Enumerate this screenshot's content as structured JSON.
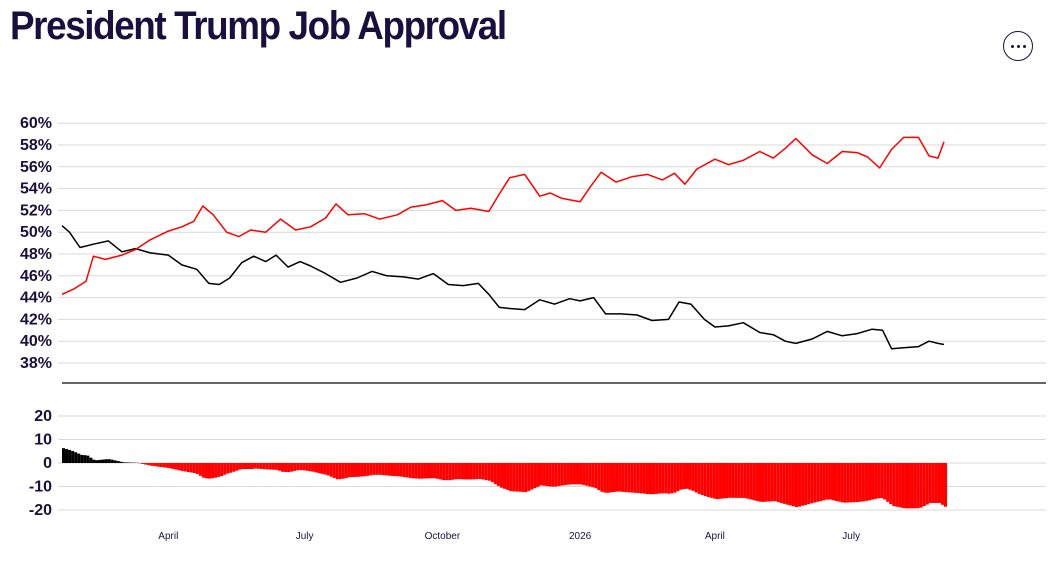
{
  "title": "President Trump Job Approval",
  "menu_icon": "more-horizontal-icon",
  "colors": {
    "approve": "#000000",
    "disapprove": "#ff0000",
    "text": "#1a0f3d",
    "grid": "#d9d9d9"
  },
  "chart_data": [
    {
      "type": "line",
      "title": "President Trump Job Approval",
      "ylim": [
        36,
        62
      ],
      "yticks": [
        "38%",
        "40%",
        "42%",
        "44%",
        "46%",
        "48%",
        "50%",
        "52%",
        "54%",
        "56%",
        "58%",
        "60%"
      ],
      "ytick_values": [
        38,
        40,
        42,
        44,
        46,
        48,
        50,
        52,
        54,
        56,
        58,
        60
      ],
      "xticks": [
        "April",
        "July",
        "October",
        "2026",
        "April",
        "July"
      ],
      "xtick_dates": [
        "2025-04-01",
        "2025-07-01",
        "2025-10-01",
        "2026-01-01",
        "2026-04-01",
        "2026-07-01"
      ],
      "x_range": [
        "2025-01-20",
        "2026-09-01"
      ],
      "grid": true,
      "series": [
        {
          "key": "approve",
          "color": "#000000",
          "points": [
            [
              "2025-01-20",
              50.6
            ],
            [
              "2025-01-25",
              50.0
            ],
            [
              "2025-02-01",
              48.6
            ],
            [
              "2025-02-10",
              48.9
            ],
            [
              "2025-02-20",
              49.2
            ],
            [
              "2025-03-01",
              48.2
            ],
            [
              "2025-03-10",
              48.5
            ],
            [
              "2025-03-20",
              48.1
            ],
            [
              "2025-04-01",
              47.9
            ],
            [
              "2025-04-10",
              47.0
            ],
            [
              "2025-04-20",
              46.6
            ],
            [
              "2025-04-28",
              45.3
            ],
            [
              "2025-05-05",
              45.2
            ],
            [
              "2025-05-12",
              45.8
            ],
            [
              "2025-05-20",
              47.2
            ],
            [
              "2025-05-28",
              47.8
            ],
            [
              "2025-06-05",
              47.3
            ],
            [
              "2025-06-12",
              47.9
            ],
            [
              "2025-06-20",
              46.8
            ],
            [
              "2025-06-28",
              47.3
            ],
            [
              "2025-07-05",
              46.9
            ],
            [
              "2025-07-15",
              46.2
            ],
            [
              "2025-07-25",
              45.4
            ],
            [
              "2025-08-05",
              45.8
            ],
            [
              "2025-08-15",
              46.4
            ],
            [
              "2025-08-25",
              46.0
            ],
            [
              "2025-09-05",
              45.9
            ],
            [
              "2025-09-15",
              45.7
            ],
            [
              "2025-09-25",
              46.2
            ],
            [
              "2025-10-05",
              45.2
            ],
            [
              "2025-10-15",
              45.1
            ],
            [
              "2025-10-25",
              45.3
            ],
            [
              "2025-11-01",
              44.3
            ],
            [
              "2025-11-08",
              43.1
            ],
            [
              "2025-11-15",
              43.0
            ],
            [
              "2025-11-25",
              42.9
            ],
            [
              "2025-12-05",
              43.8
            ],
            [
              "2025-12-15",
              43.4
            ],
            [
              "2025-12-25",
              43.9
            ],
            [
              "2026-01-01",
              43.7
            ],
            [
              "2026-01-10",
              44.0
            ],
            [
              "2026-01-18",
              42.5
            ],
            [
              "2026-01-28",
              42.5
            ],
            [
              "2026-02-08",
              42.4
            ],
            [
              "2026-02-18",
              41.9
            ],
            [
              "2026-03-01",
              42.0
            ],
            [
              "2026-03-08",
              43.6
            ],
            [
              "2026-03-16",
              43.4
            ],
            [
              "2026-03-25",
              42.0
            ],
            [
              "2026-04-01",
              41.3
            ],
            [
              "2026-04-10",
              41.4
            ],
            [
              "2026-04-20",
              41.7
            ],
            [
              "2026-05-01",
              40.8
            ],
            [
              "2026-05-10",
              40.6
            ],
            [
              "2026-05-18",
              40.0
            ],
            [
              "2026-05-25",
              39.8
            ],
            [
              "2026-06-05",
              40.2
            ],
            [
              "2026-06-15",
              40.9
            ],
            [
              "2026-06-25",
              40.5
            ],
            [
              "2026-07-05",
              40.7
            ],
            [
              "2026-07-15",
              41.1
            ],
            [
              "2026-07-22",
              41.0
            ],
            [
              "2026-07-28",
              39.3
            ],
            [
              "2026-08-05",
              39.4
            ],
            [
              "2026-08-15",
              39.5
            ],
            [
              "2026-08-22",
              40.0
            ],
            [
              "2026-08-28",
              39.8
            ],
            [
              "2026-09-01",
              39.7
            ]
          ]
        },
        {
          "key": "disapprove",
          "color": "#ff0000",
          "points": [
            [
              "2025-01-20",
              44.3
            ],
            [
              "2025-01-28",
              44.8
            ],
            [
              "2025-02-05",
              45.5
            ],
            [
              "2025-02-10",
              47.8
            ],
            [
              "2025-02-18",
              47.5
            ],
            [
              "2025-03-01",
              47.9
            ],
            [
              "2025-03-10",
              48.4
            ],
            [
              "2025-03-20",
              49.3
            ],
            [
              "2025-04-01",
              50.1
            ],
            [
              "2025-04-10",
              50.5
            ],
            [
              "2025-04-18",
              51.0
            ],
            [
              "2025-04-24",
              52.4
            ],
            [
              "2025-05-01",
              51.6
            ],
            [
              "2025-05-10",
              50.0
            ],
            [
              "2025-05-18",
              49.6
            ],
            [
              "2025-05-26",
              50.2
            ],
            [
              "2025-06-05",
              50.0
            ],
            [
              "2025-06-15",
              51.2
            ],
            [
              "2025-06-25",
              50.2
            ],
            [
              "2025-07-05",
              50.5
            ],
            [
              "2025-07-15",
              51.3
            ],
            [
              "2025-07-22",
              52.6
            ],
            [
              "2025-07-30",
              51.6
            ],
            [
              "2025-08-10",
              51.7
            ],
            [
              "2025-08-20",
              51.2
            ],
            [
              "2025-09-01",
              51.6
            ],
            [
              "2025-09-10",
              52.3
            ],
            [
              "2025-09-20",
              52.5
            ],
            [
              "2025-10-01",
              52.9
            ],
            [
              "2025-10-10",
              52.0
            ],
            [
              "2025-10-20",
              52.2
            ],
            [
              "2025-11-01",
              51.9
            ],
            [
              "2025-11-08",
              53.5
            ],
            [
              "2025-11-15",
              55.0
            ],
            [
              "2025-11-25",
              55.3
            ],
            [
              "2025-12-05",
              53.3
            ],
            [
              "2025-12-12",
              53.6
            ],
            [
              "2025-12-20",
              53.1
            ],
            [
              "2026-01-01",
              52.8
            ],
            [
              "2026-01-08",
              54.2
            ],
            [
              "2026-01-15",
              55.5
            ],
            [
              "2026-01-25",
              54.6
            ],
            [
              "2026-02-05",
              55.1
            ],
            [
              "2026-02-15",
              55.3
            ],
            [
              "2026-02-25",
              54.8
            ],
            [
              "2026-03-05",
              55.4
            ],
            [
              "2026-03-12",
              54.4
            ],
            [
              "2026-03-20",
              55.8
            ],
            [
              "2026-04-01",
              56.7
            ],
            [
              "2026-04-10",
              56.2
            ],
            [
              "2026-04-20",
              56.6
            ],
            [
              "2026-05-01",
              57.4
            ],
            [
              "2026-05-10",
              56.8
            ],
            [
              "2026-05-18",
              57.7
            ],
            [
              "2026-05-25",
              58.6
            ],
            [
              "2026-06-05",
              57.1
            ],
            [
              "2026-06-15",
              56.3
            ],
            [
              "2026-06-25",
              57.4
            ],
            [
              "2026-07-05",
              57.3
            ],
            [
              "2026-07-12",
              56.9
            ],
            [
              "2026-07-20",
              55.9
            ],
            [
              "2026-07-28",
              57.6
            ],
            [
              "2026-08-05",
              58.7
            ],
            [
              "2026-08-15",
              58.7
            ],
            [
              "2026-08-22",
              57.0
            ],
            [
              "2026-08-28",
              56.8
            ],
            [
              "2026-09-01",
              58.3
            ]
          ]
        }
      ]
    },
    {
      "type": "bar",
      "ylim": [
        -23,
        23
      ],
      "yticks": [
        "20",
        "10",
        "0",
        "-10",
        "-20"
      ],
      "ytick_values": [
        20,
        10,
        0,
        -10,
        -20
      ],
      "x_range": [
        "2025-01-20",
        "2026-09-01"
      ],
      "grid": true,
      "positive_color": "#000000",
      "negative_color": "#ff0000",
      "values_note": "net = approve - disapprove"
    }
  ]
}
